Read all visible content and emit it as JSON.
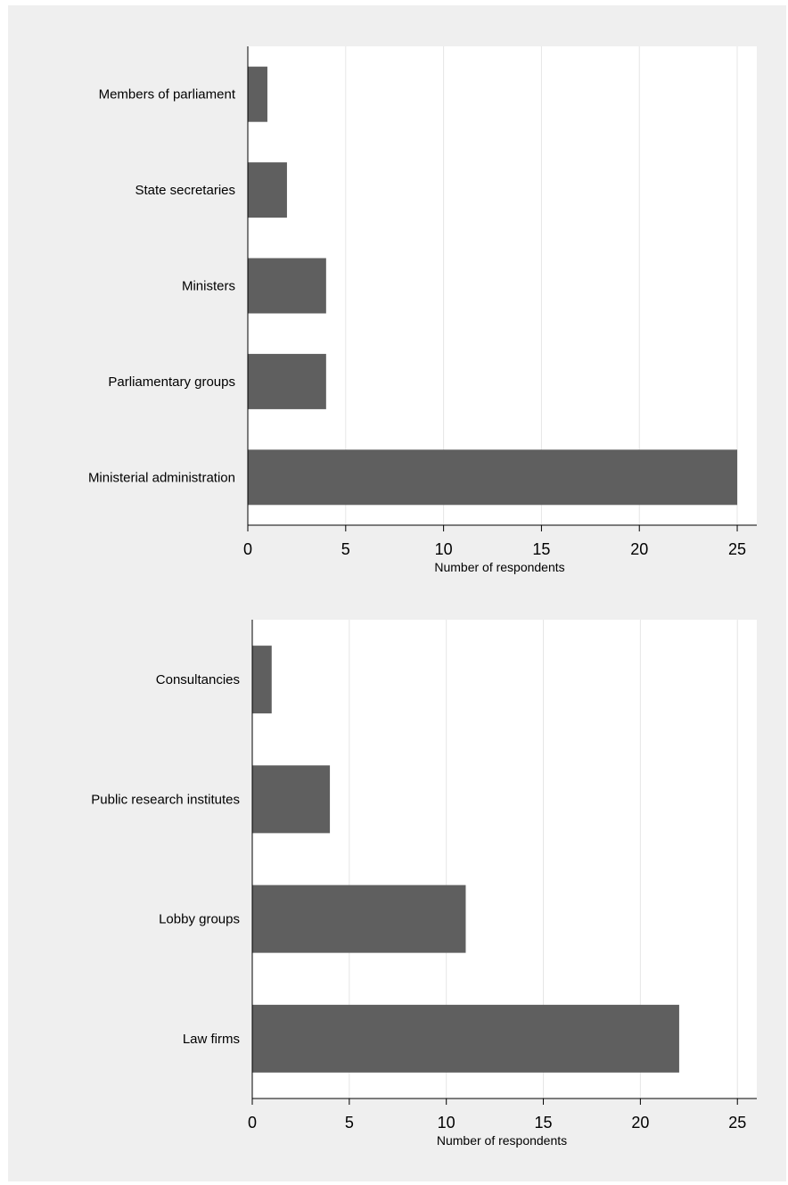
{
  "chart_data": [
    {
      "type": "bar",
      "orientation": "horizontal",
      "categories": [
        "Members of parliament",
        "State secretaries",
        "Ministers",
        "Parliamentary groups",
        "Ministerial administration"
      ],
      "values": [
        1,
        2,
        4,
        4,
        25
      ],
      "xlabel": "Number of respondents",
      "xlim": [
        0,
        26
      ],
      "xticks": [
        0,
        5,
        10,
        15,
        20,
        25
      ],
      "grid": true,
      "bar_color": "#5f5f5f"
    },
    {
      "type": "bar",
      "orientation": "horizontal",
      "categories": [
        "Consultancies",
        "Public research institutes",
        "Lobby groups",
        "Law firms"
      ],
      "values": [
        1,
        4,
        11,
        22
      ],
      "xlabel": "Number of respondents",
      "xlim": [
        0,
        26
      ],
      "xticks": [
        0,
        5,
        10,
        15,
        20,
        25
      ],
      "grid": true,
      "bar_color": "#5f5f5f"
    }
  ]
}
